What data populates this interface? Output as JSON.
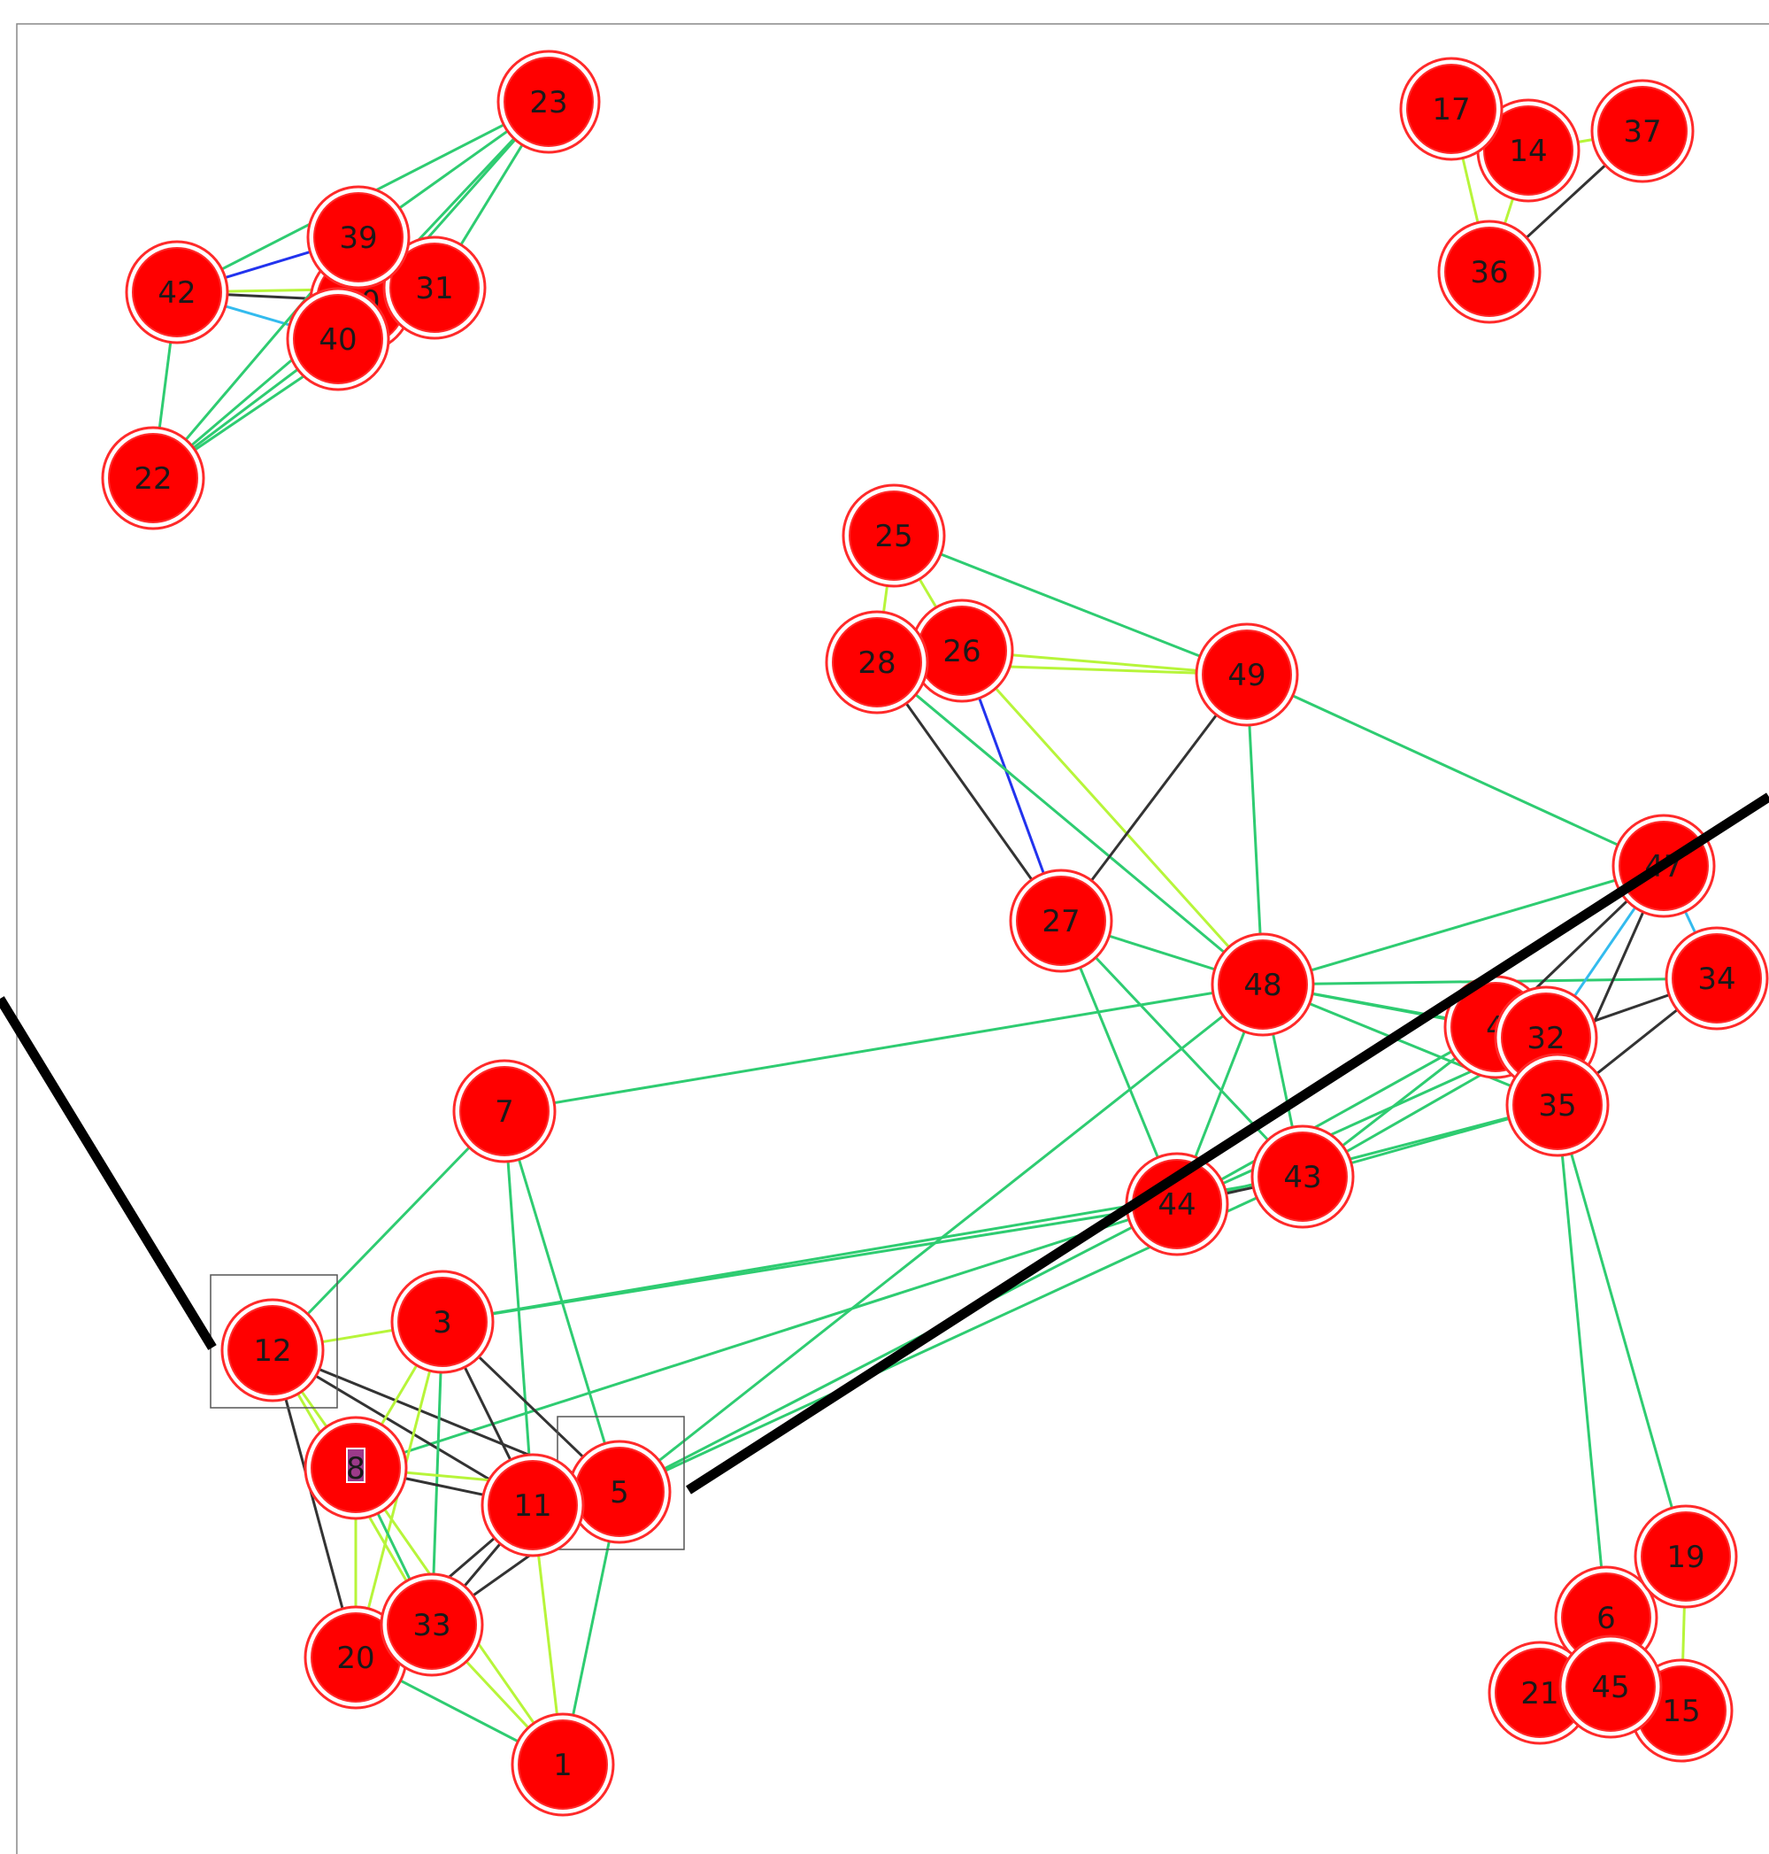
{
  "graph": {
    "colors": {
      "node_fill": "#ff0000",
      "node_ring": "#ff2a2a",
      "edge_green": "#2ecc71",
      "edge_lime": "#b7f53a",
      "edge_black": "#333333",
      "edge_blue": "#2233ee",
      "edge_cyan": "#33bbee",
      "cut_line": "#000000",
      "frame": "#888888",
      "selection_box": "#555555",
      "highlight_8": "#9b3a8a"
    },
    "nodes": [
      {
        "id": "1",
        "label": "1"
      },
      {
        "id": "3",
        "label": "3"
      },
      {
        "id": "4",
        "label": "4"
      },
      {
        "id": "5",
        "label": "5",
        "selected": true
      },
      {
        "id": "6",
        "label": "6"
      },
      {
        "id": "7",
        "label": "7"
      },
      {
        "id": "8",
        "label": "8",
        "highlighted": true
      },
      {
        "id": "11",
        "label": "11"
      },
      {
        "id": "12",
        "label": "12",
        "selected": true
      },
      {
        "id": "14",
        "label": "14"
      },
      {
        "id": "15",
        "label": "15"
      },
      {
        "id": "17",
        "label": "17"
      },
      {
        "id": "19",
        "label": "19"
      },
      {
        "id": "20",
        "label": "20"
      },
      {
        "id": "21",
        "label": "21"
      },
      {
        "id": "22",
        "label": "22"
      },
      {
        "id": "23",
        "label": "23"
      },
      {
        "id": "25",
        "label": "25"
      },
      {
        "id": "26",
        "label": "26"
      },
      {
        "id": "27",
        "label": "27"
      },
      {
        "id": "28",
        "label": "28"
      },
      {
        "id": "30",
        "label": "30"
      },
      {
        "id": "31",
        "label": "31"
      },
      {
        "id": "32",
        "label": "32"
      },
      {
        "id": "33",
        "label": "33"
      },
      {
        "id": "34",
        "label": "34"
      },
      {
        "id": "35",
        "label": "35"
      },
      {
        "id": "36",
        "label": "36"
      },
      {
        "id": "37",
        "label": "37"
      },
      {
        "id": "39",
        "label": "39"
      },
      {
        "id": "40",
        "label": "40"
      },
      {
        "id": "42",
        "label": "42"
      },
      {
        "id": "43",
        "label": "43"
      },
      {
        "id": "44",
        "label": "44"
      },
      {
        "id": "45",
        "label": "45"
      },
      {
        "id": "47",
        "label": "47"
      },
      {
        "id": "48",
        "label": "48"
      },
      {
        "id": "49",
        "label": "49"
      }
    ],
    "edges": [
      {
        "a": "23",
        "b": "39",
        "color": "green"
      },
      {
        "a": "23",
        "b": "30",
        "color": "green"
      },
      {
        "a": "23",
        "b": "31",
        "color": "green"
      },
      {
        "a": "23",
        "b": "40",
        "color": "green"
      },
      {
        "a": "23",
        "b": "42",
        "color": "green"
      },
      {
        "a": "42",
        "b": "39",
        "color": "blue"
      },
      {
        "a": "42",
        "b": "30",
        "color": "black"
      },
      {
        "a": "42",
        "b": "31",
        "color": "lime"
      },
      {
        "a": "42",
        "b": "40",
        "color": "cyan"
      },
      {
        "a": "42",
        "b": "22",
        "color": "green"
      },
      {
        "a": "22",
        "b": "39",
        "color": "green"
      },
      {
        "a": "22",
        "b": "30",
        "color": "green"
      },
      {
        "a": "22",
        "b": "31",
        "color": "green"
      },
      {
        "a": "22",
        "b": "40",
        "color": "green"
      },
      {
        "a": "39",
        "b": "30",
        "color": "lime"
      },
      {
        "a": "30",
        "b": "31",
        "color": "green"
      },
      {
        "a": "17",
        "b": "14",
        "color": "lime"
      },
      {
        "a": "17",
        "b": "36",
        "color": "lime"
      },
      {
        "a": "14",
        "b": "37",
        "color": "lime"
      },
      {
        "a": "14",
        "b": "36",
        "color": "lime"
      },
      {
        "a": "37",
        "b": "36",
        "color": "black"
      },
      {
        "a": "25",
        "b": "28",
        "color": "lime"
      },
      {
        "a": "25",
        "b": "26",
        "color": "lime"
      },
      {
        "a": "25",
        "b": "49",
        "color": "green"
      },
      {
        "a": "26",
        "b": "49",
        "color": "lime"
      },
      {
        "a": "28",
        "b": "49",
        "color": "lime"
      },
      {
        "a": "26",
        "b": "27",
        "color": "blue"
      },
      {
        "a": "28",
        "b": "27",
        "color": "black"
      },
      {
        "a": "26",
        "b": "48",
        "color": "lime"
      },
      {
        "a": "28",
        "b": "48",
        "color": "green"
      },
      {
        "a": "49",
        "b": "27",
        "color": "black"
      },
      {
        "a": "49",
        "b": "48",
        "color": "green"
      },
      {
        "a": "49",
        "b": "47",
        "color": "green"
      },
      {
        "a": "27",
        "b": "48",
        "color": "green"
      },
      {
        "a": "27",
        "b": "44",
        "color": "green"
      },
      {
        "a": "27",
        "b": "43",
        "color": "green"
      },
      {
        "a": "48",
        "b": "47",
        "color": "green"
      },
      {
        "a": "48",
        "b": "34",
        "color": "green"
      },
      {
        "a": "48",
        "b": "4",
        "color": "green"
      },
      {
        "a": "48",
        "b": "32",
        "color": "green"
      },
      {
        "a": "48",
        "b": "35",
        "color": "green"
      },
      {
        "a": "48",
        "b": "44",
        "color": "green"
      },
      {
        "a": "48",
        "b": "43",
        "color": "green"
      },
      {
        "a": "48",
        "b": "7",
        "color": "green"
      },
      {
        "a": "48",
        "b": "5",
        "color": "green"
      },
      {
        "a": "47",
        "b": "34",
        "color": "cyan"
      },
      {
        "a": "47",
        "b": "4",
        "color": "black"
      },
      {
        "a": "47",
        "b": "32",
        "color": "cyan"
      },
      {
        "a": "47",
        "b": "35",
        "color": "black"
      },
      {
        "a": "34",
        "b": "32",
        "color": "black"
      },
      {
        "a": "34",
        "b": "35",
        "color": "black"
      },
      {
        "a": "4",
        "b": "32",
        "color": "green"
      },
      {
        "a": "4",
        "b": "35",
        "color": "green"
      },
      {
        "a": "32",
        "b": "35",
        "color": "green"
      },
      {
        "a": "4",
        "b": "44",
        "color": "green"
      },
      {
        "a": "4",
        "b": "43",
        "color": "green"
      },
      {
        "a": "32",
        "b": "44",
        "color": "green"
      },
      {
        "a": "32",
        "b": "43",
        "color": "green"
      },
      {
        "a": "35",
        "b": "44",
        "color": "green"
      },
      {
        "a": "35",
        "b": "43",
        "color": "green"
      },
      {
        "a": "35",
        "b": "6",
        "color": "green"
      },
      {
        "a": "35",
        "b": "19",
        "color": "green"
      },
      {
        "a": "43",
        "b": "44",
        "color": "black"
      },
      {
        "a": "44",
        "b": "3",
        "color": "green"
      },
      {
        "a": "44",
        "b": "8",
        "color": "green"
      },
      {
        "a": "44",
        "b": "5",
        "color": "green"
      },
      {
        "a": "43",
        "b": "5",
        "color": "green"
      },
      {
        "a": "43",
        "b": "3",
        "color": "green"
      },
      {
        "a": "7",
        "b": "12",
        "color": "green"
      },
      {
        "a": "7",
        "b": "11",
        "color": "green"
      },
      {
        "a": "7",
        "b": "5",
        "color": "green"
      },
      {
        "a": "12",
        "b": "3",
        "color": "lime"
      },
      {
        "a": "12",
        "b": "8",
        "color": "lime"
      },
      {
        "a": "12",
        "b": "11",
        "color": "black"
      },
      {
        "a": "12",
        "b": "5",
        "color": "black"
      },
      {
        "a": "12",
        "b": "20",
        "color": "black"
      },
      {
        "a": "12",
        "b": "33",
        "color": "lime"
      },
      {
        "a": "3",
        "b": "8",
        "color": "lime"
      },
      {
        "a": "3",
        "b": "11",
        "color": "black"
      },
      {
        "a": "3",
        "b": "5",
        "color": "black"
      },
      {
        "a": "3",
        "b": "33",
        "color": "green"
      },
      {
        "a": "3",
        "b": "20",
        "color": "lime"
      },
      {
        "a": "8",
        "b": "11",
        "color": "black"
      },
      {
        "a": "8",
        "b": "5",
        "color": "lime"
      },
      {
        "a": "8",
        "b": "20",
        "color": "lime"
      },
      {
        "a": "8",
        "b": "33",
        "color": "green"
      },
      {
        "a": "8",
        "b": "1",
        "color": "lime"
      },
      {
        "a": "11",
        "b": "5",
        "color": "black"
      },
      {
        "a": "11",
        "b": "33",
        "color": "black"
      },
      {
        "a": "11",
        "b": "20",
        "color": "black"
      },
      {
        "a": "11",
        "b": "1",
        "color": "lime"
      },
      {
        "a": "5",
        "b": "33",
        "color": "black"
      },
      {
        "a": "5",
        "b": "1",
        "color": "green"
      },
      {
        "a": "20",
        "b": "33",
        "color": "green"
      },
      {
        "a": "20",
        "b": "1",
        "color": "green"
      },
      {
        "a": "33",
        "b": "1",
        "color": "lime"
      },
      {
        "a": "6",
        "b": "19",
        "color": "black"
      },
      {
        "a": "6",
        "b": "21",
        "color": "lime"
      },
      {
        "a": "6",
        "b": "45",
        "color": "lime"
      },
      {
        "a": "19",
        "b": "15",
        "color": "lime"
      },
      {
        "a": "45",
        "b": "15",
        "color": "lime"
      },
      {
        "a": "21",
        "b": "45",
        "color": "lime"
      }
    ]
  }
}
